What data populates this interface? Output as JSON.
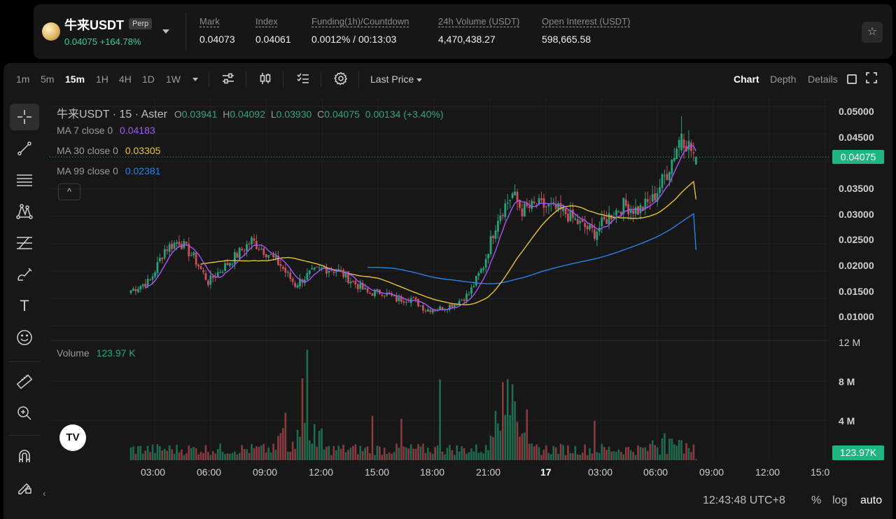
{
  "ticker": {
    "symbol": "牛来USDT",
    "badge": "Perp",
    "price_change": "0.04075 +164.78%",
    "stats": [
      {
        "label": "Mark",
        "value": "0.04073"
      },
      {
        "label": "Index",
        "value": "0.04061"
      },
      {
        "label": "Funding(1h)/Countdown",
        "value": "0.0012% / 00:13:03"
      },
      {
        "label": "24h Volume (USDT)",
        "value": "4,470,438.27"
      },
      {
        "label": "Open Interest (USDT)",
        "value": "598,665.58"
      }
    ]
  },
  "toolbar": {
    "intervals": [
      "1m",
      "5m",
      "15m",
      "1H",
      "4H",
      "1D",
      "1W"
    ],
    "active_interval": "15m",
    "price_type": "Last Price",
    "views": [
      "Chart",
      "Depth",
      "Details"
    ],
    "active_view": "Chart"
  },
  "legend": {
    "title": "牛来USDT · 15 · Aster",
    "ohlc": {
      "o_label": "O",
      "o": "0.03941",
      "h_label": "H",
      "h": "0.04092",
      "l_label": "L",
      "l": "0.03930",
      "c_label": "C",
      "c": "0.04075",
      "change": "0.00134 (+3.40%)"
    },
    "ma7_label": "MA 7 close 0",
    "ma7_value": "0.04183",
    "ma30_label": "MA 30 close 0",
    "ma30_value": "0.03305",
    "ma99_label": "MA 99 close 0",
    "ma99_value": "0.02381",
    "volume_label": "Volume",
    "volume_value": "123.97 K",
    "collapse_glyph": "^"
  },
  "price_axis": [
    "0.05000",
    "0.04500",
    "0.03500",
    "0.03000",
    "0.02500",
    "0.02000",
    "0.01500",
    "0.01000"
  ],
  "last_price_tag": "0.04075",
  "volume_axis": [
    "12 M",
    "8 M",
    "4 M"
  ],
  "volume_tag": "123.97K",
  "time_axis": [
    "03:00",
    "06:00",
    "09:00",
    "12:00",
    "15:00",
    "18:00",
    "21:00",
    "17",
    "03:00",
    "06:00",
    "09:00",
    "12:00",
    "15:0"
  ],
  "bottom": {
    "clock": "12:43:48 UTC+8",
    "percent": "%",
    "log": "log",
    "auto": "auto"
  },
  "tv_logo": "TV",
  "colors": {
    "up": "#26a17b",
    "down": "#c8505a",
    "ma7": "#a855f7",
    "ma30": "#e8c33a",
    "ma99": "#2b82e8",
    "accent": "#1fb57f"
  },
  "chart_data": {
    "type": "candlestick",
    "interval": "15m",
    "price_range": [
      0.0075,
      0.0515
    ],
    "volume_range": [
      0,
      12000000
    ],
    "candles_ohlc": [],
    "anchor_closes": [
      [
        0,
        0.0165
      ],
      [
        8,
        0.0182
      ],
      [
        14,
        0.024
      ],
      [
        20,
        0.0255
      ],
      [
        26,
        0.0225
      ],
      [
        32,
        0.018
      ],
      [
        38,
        0.0205
      ],
      [
        44,
        0.023
      ],
      [
        50,
        0.0255
      ],
      [
        56,
        0.0235
      ],
      [
        62,
        0.021
      ],
      [
        68,
        0.0175
      ],
      [
        74,
        0.0195
      ],
      [
        80,
        0.0205
      ],
      [
        86,
        0.02
      ],
      [
        92,
        0.018
      ],
      [
        98,
        0.016
      ],
      [
        104,
        0.0162
      ],
      [
        110,
        0.0148
      ],
      [
        116,
        0.015
      ],
      [
        122,
        0.013
      ],
      [
        128,
        0.0132
      ],
      [
        134,
        0.014
      ],
      [
        140,
        0.0158
      ],
      [
        146,
        0.021
      ],
      [
        152,
        0.03
      ],
      [
        158,
        0.034
      ],
      [
        162,
        0.031
      ],
      [
        168,
        0.032
      ],
      [
        174,
        0.0315
      ],
      [
        180,
        0.0305
      ],
      [
        186,
        0.0285
      ],
      [
        192,
        0.027
      ],
      [
        198,
        0.03
      ],
      [
        204,
        0.032
      ],
      [
        210,
        0.031
      ],
      [
        216,
        0.033
      ],
      [
        222,
        0.038
      ],
      [
        228,
        0.045
      ],
      [
        232,
        0.042
      ],
      [
        234,
        0.0405
      ]
    ],
    "volume_spikes": [
      [
        73,
        11200000
      ],
      [
        71,
        8300000
      ],
      [
        64,
        4800000
      ],
      [
        128,
        8200000
      ],
      [
        156,
        8200000
      ],
      [
        154,
        7900000
      ],
      [
        158,
        7700000
      ],
      [
        100,
        4500000
      ],
      [
        112,
        4200000
      ],
      [
        192,
        4000000
      ]
    ],
    "ma7_last": 0.04183,
    "ma30_last": 0.03305,
    "ma99_last": 0.02381
  }
}
